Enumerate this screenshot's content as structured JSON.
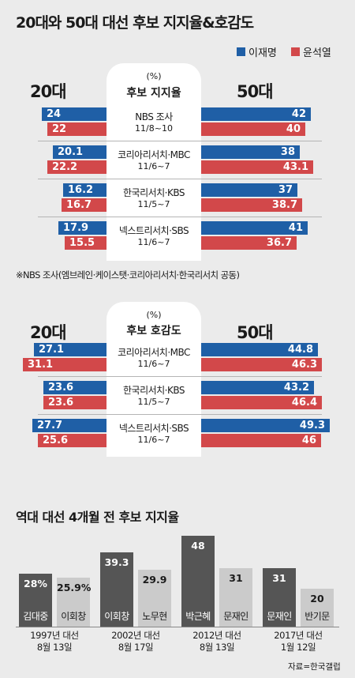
{
  "title": "20대와 50대 대선 후보 지지율&호감도",
  "legend": [
    {
      "name": "이재명",
      "color": "#1f5fa6"
    },
    {
      "name": "윤석열",
      "color": "#d2484a"
    }
  ],
  "chart_data": [
    {
      "type": "bar",
      "title": "후보 지지율",
      "unit": "(%)",
      "left_group": "20대",
      "right_group": "50대",
      "series": [
        {
          "name": "이재명"
        },
        {
          "name": "윤석열"
        }
      ],
      "polls": [
        {
          "name": "NBS 조사",
          "date": "11/8~10",
          "age20": [
            24,
            22
          ],
          "age50": [
            42,
            40
          ]
        },
        {
          "name": "코리아리서치·MBC",
          "date": "11/6~7",
          "age20": [
            20.1,
            22.2
          ],
          "age50": [
            38,
            43.1
          ]
        },
        {
          "name": "한국리서치·KBS",
          "date": "11/5~7",
          "age20": [
            16.2,
            16.7
          ],
          "age50": [
            37,
            38.7
          ]
        },
        {
          "name": "넥스트리서치·SBS",
          "date": "11/6~7",
          "age20": [
            17.9,
            15.5
          ],
          "age50": [
            41,
            36.7
          ]
        }
      ],
      "note": "※NBS 조사(엠브레인·케이스탯·코리아리서치·한국리서치 공동)"
    },
    {
      "type": "bar",
      "title": "후보 호감도",
      "unit": "(%)",
      "left_group": "20대",
      "right_group": "50대",
      "series": [
        {
          "name": "이재명"
        },
        {
          "name": "윤석열"
        }
      ],
      "polls": [
        {
          "name": "코리아리서치·MBC",
          "date": "11/6~7",
          "age20": [
            27.1,
            31.1
          ],
          "age50": [
            44.8,
            46.3
          ]
        },
        {
          "name": "한국리서치·KBS",
          "date": "11/5~7",
          "age20": [
            23.6,
            23.6
          ],
          "age50": [
            43.2,
            46.4
          ]
        },
        {
          "name": "넥스트리서치·SBS",
          "date": "11/6~7",
          "age20": [
            27.7,
            25.6
          ],
          "age50": [
            49.3,
            46
          ]
        }
      ]
    },
    {
      "type": "bar",
      "title": "역대 대선 4개월 전 후보 지지율",
      "groups": [
        {
          "election": "1997년 대선",
          "date": "8월 13일",
          "candidates": [
            {
              "name": "김대중",
              "value": 28,
              "label": "28%"
            },
            {
              "name": "이회창",
              "value": 25.9,
              "label": "25.9%"
            }
          ]
        },
        {
          "election": "2002년 대선",
          "date": "8월 17일",
          "candidates": [
            {
              "name": "이회창",
              "value": 39.3,
              "label": "39.3"
            },
            {
              "name": "노무현",
              "value": 29.9,
              "label": "29.9"
            }
          ]
        },
        {
          "election": "2012년 대선",
          "date": "8월 13일",
          "candidates": [
            {
              "name": "박근혜",
              "value": 48,
              "label": "48"
            },
            {
              "name": "문재인",
              "value": 31,
              "label": "31"
            }
          ]
        },
        {
          "election": "2017년 대선",
          "date": "1월 12일",
          "candidates": [
            {
              "name": "문재인",
              "value": 31,
              "label": "31"
            },
            {
              "name": "반기문",
              "value": 20,
              "label": "20"
            }
          ]
        }
      ],
      "source": "자료=한국갤럽"
    }
  ]
}
